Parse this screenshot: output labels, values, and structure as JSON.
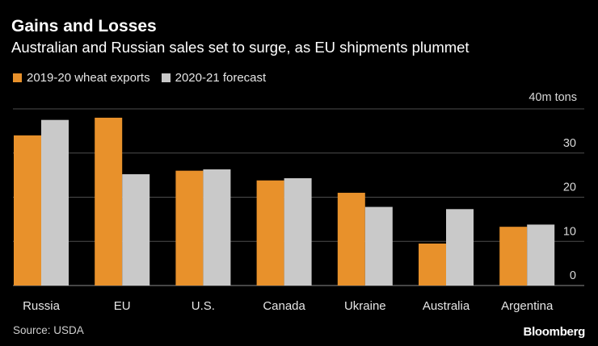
{
  "title": "Gains and Losses",
  "subtitle": "Australian and Russian sales set to surge, as EU shipments plummet",
  "source": "Source: USDA",
  "brand": "Bloomberg",
  "colors": {
    "series1": "#E8912B",
    "series2": "#C9C9C9",
    "grid": "#4d4d4d",
    "background": "#000000"
  },
  "chart_data": {
    "type": "bar",
    "unit_label": "40m tons",
    "categories": [
      "Russia",
      "EU",
      "U.S.",
      "Canada",
      "Ukraine",
      "Australia",
      "Argentina"
    ],
    "series": [
      {
        "name": "2019-20 wheat exports",
        "values": [
          34.0,
          38.0,
          26.0,
          23.8,
          21.0,
          9.5,
          13.3
        ]
      },
      {
        "name": "2020-21 forecast",
        "values": [
          37.5,
          25.2,
          26.3,
          24.3,
          17.8,
          17.3,
          13.8
        ]
      }
    ],
    "ylim": [
      0,
      40
    ],
    "yticks": [
      0,
      10,
      20,
      30,
      40
    ],
    "ytick_labels": [
      "0",
      "10",
      "20",
      "30",
      ""
    ],
    "grid": true
  }
}
